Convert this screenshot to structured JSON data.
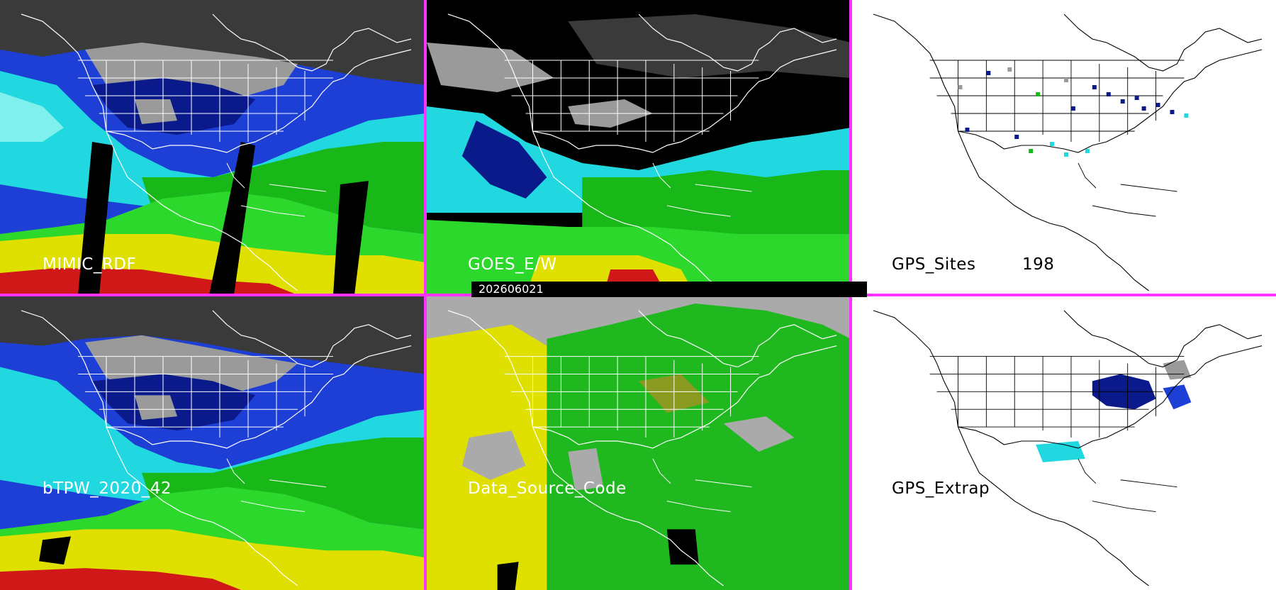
{
  "colors": {
    "divider": "#ff33ff",
    "dark_gray": "#3a3a3a",
    "mid_gray": "#9a9a9a",
    "navy": "#0a1a8a",
    "blue": "#1d3fd6",
    "cyan": "#22d8e0",
    "light_cyan": "#7ff0ec",
    "green": "#18b818",
    "bright_green": "#2cd82c",
    "olive": "#8a9a20",
    "yellow": "#e0e000",
    "red": "#d01818",
    "source_gray": "#aaaaaa",
    "source_green": "#1fb81f",
    "source_yellow": "#e0e000",
    "white": "#ffffff"
  },
  "timestamp": "202606021",
  "panels": [
    {
      "id": "mimic",
      "label": "MIMIC_RDF"
    },
    {
      "id": "goes",
      "label": "GOES_E/W"
    },
    {
      "id": "gps-sites",
      "label": "GPS_Sites",
      "count": "198"
    },
    {
      "id": "btpw",
      "label": "bTPW_2020_42"
    },
    {
      "id": "source",
      "label": "Data_Source_Code"
    },
    {
      "id": "gps-extrap",
      "label": "GPS_Extrap"
    }
  ]
}
